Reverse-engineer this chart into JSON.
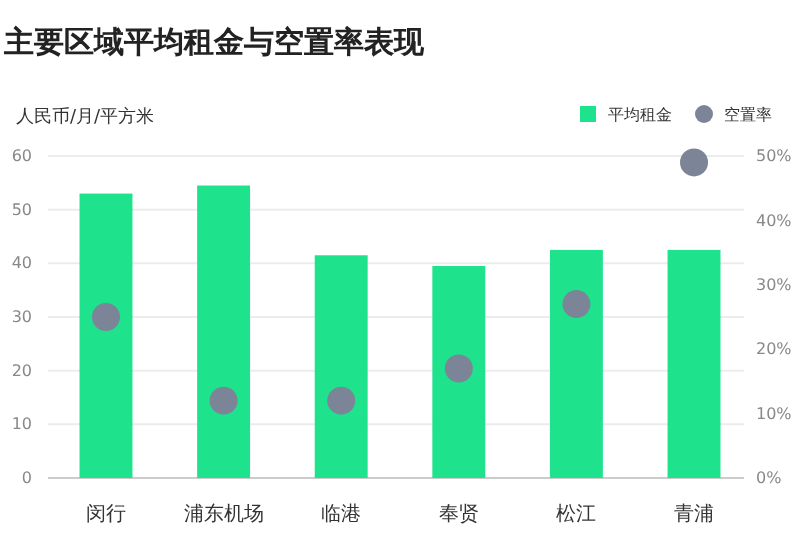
{
  "chart_data": {
    "type": "bar",
    "title": "主要区域平均租金与空置率表现",
    "ylabel": "人民币/月/平方米",
    "categories": [
      "闵行",
      "浦东机场",
      "临港",
      "奉贤",
      "松江",
      "青浦"
    ],
    "series": [
      {
        "name": "平均租金",
        "color": "#1ee38c",
        "values": [
          53,
          54.5,
          41.5,
          39.5,
          42.5,
          42.5
        ]
      },
      {
        "name": "空置率",
        "type": "scatter",
        "axis": "y2",
        "color": "#7c8597",
        "marker": "circle",
        "x": [
          "闵行",
          "浦东机场",
          "临港",
          "奉贤",
          "松江",
          "青浦"
        ],
        "values": [
          25,
          12,
          12,
          17,
          27,
          49
        ]
      }
    ],
    "ylim": [
      0,
      60
    ],
    "yticks": [
      0,
      10,
      20,
      30,
      40,
      50,
      60
    ],
    "y2lim": [
      0,
      50
    ],
    "y2ticks": [
      {
        "value": 0,
        "label": "0%"
      },
      {
        "value": 10,
        "label": "10%"
      },
      {
        "value": 20,
        "label": "20%"
      },
      {
        "value": 30,
        "label": "30%"
      },
      {
        "value": 40,
        "label": "40%"
      },
      {
        "value": 50,
        "label": "50%"
      }
    ],
    "grid": "y",
    "legend": "top right"
  }
}
